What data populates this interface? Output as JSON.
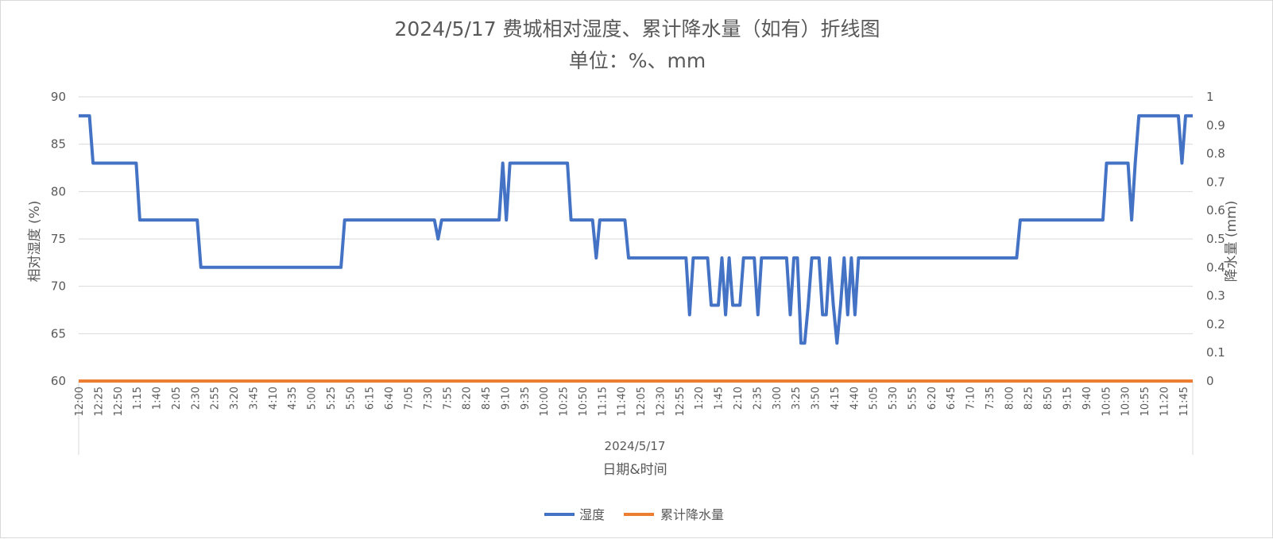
{
  "chart_data": {
    "type": "line",
    "title": "2024/5/17 费城相对湿度、累计降水量（如有）折线图",
    "subtitle": "单位：%、mm",
    "xlabel_group": "2024/5/17",
    "xlabel": "日期&时间",
    "ylabel": "相对湿度 (%)",
    "y2label": "降水量 (mm)",
    "ylim": [
      60,
      90
    ],
    "y_ticks": [
      60,
      65,
      70,
      75,
      80,
      85,
      90
    ],
    "y2lim": [
      0,
      1
    ],
    "y2_ticks": [
      "0",
      "0.1",
      "0.2",
      "0.3",
      "0.4",
      "0.5",
      "0.6",
      "0.7",
      "0.8",
      "0.9",
      "1"
    ],
    "grid": true,
    "legend_position": "bottom",
    "x_labels": [
      "12:00",
      "12:25",
      "12:50",
      "1:15",
      "1:40",
      "2:05",
      "2:30",
      "2:55",
      "3:20",
      "3:45",
      "4:10",
      "4:35",
      "5:00",
      "5:25",
      "5:50",
      "6:15",
      "6:40",
      "7:05",
      "7:30",
      "7:55",
      "8:20",
      "8:45",
      "9:10",
      "9:35",
      "10:00",
      "10:25",
      "10:50",
      "11:15",
      "11:40",
      "12:05",
      "12:30",
      "12:55",
      "1:20",
      "1:45",
      "2:10",
      "2:35",
      "3:00",
      "3:25",
      "3:50",
      "4:15",
      "4:40",
      "5:05",
      "5:30",
      "5:55",
      "6:20",
      "6:45",
      "7:10",
      "7:35",
      "8:00",
      "8:25",
      "8:50",
      "9:15",
      "9:40",
      "10:05",
      "10:30",
      "10:55",
      "11:20",
      "11:45"
    ],
    "colors": {
      "humidity": "#4472C4",
      "precip": "#ED7D31",
      "grid": "#D9D9D9"
    },
    "series": [
      {
        "name": "湿度",
        "axis": "left",
        "values": [
          88,
          88,
          88,
          88,
          83,
          83,
          83,
          83,
          83,
          83,
          83,
          83,
          83,
          83,
          83,
          83,
          83,
          77,
          77,
          77,
          77,
          77,
          77,
          77,
          77,
          77,
          77,
          77,
          77,
          77,
          77,
          77,
          77,
          77,
          72,
          72,
          72,
          72,
          72,
          72,
          72,
          72,
          72,
          72,
          72,
          72,
          72,
          72,
          72,
          72,
          72,
          72,
          72,
          72,
          72,
          72,
          72,
          72,
          72,
          72,
          72,
          72,
          72,
          72,
          72,
          72,
          72,
          72,
          72,
          72,
          72,
          72,
          72,
          72,
          77,
          77,
          77,
          77,
          77,
          77,
          77,
          77,
          77,
          77,
          77,
          77,
          77,
          77,
          77,
          77,
          77,
          77,
          77,
          77,
          77,
          77,
          77,
          77,
          77,
          77,
          75,
          77,
          77,
          77,
          77,
          77,
          77,
          77,
          77,
          77,
          77,
          77,
          77,
          77,
          77,
          77,
          77,
          77,
          83,
          77,
          83,
          83,
          83,
          83,
          83,
          83,
          83,
          83,
          83,
          83,
          83,
          83,
          83,
          83,
          83,
          83,
          83,
          77,
          77,
          77,
          77,
          77,
          77,
          77,
          73,
          77,
          77,
          77,
          77,
          77,
          77,
          77,
          77,
          73,
          73,
          73,
          73,
          73,
          73,
          73,
          73,
          73,
          73,
          73,
          73,
          73,
          73,
          73,
          73,
          73,
          67,
          73,
          73,
          73,
          73,
          73,
          68,
          68,
          68,
          73,
          67,
          73,
          68,
          68,
          68,
          73,
          73,
          73,
          73,
          67,
          73,
          73,
          73,
          73,
          73,
          73,
          73,
          73,
          67,
          73,
          73,
          64,
          64,
          68,
          73,
          73,
          73,
          67,
          67,
          73,
          68,
          64,
          68,
          73,
          67,
          73,
          67,
          73,
          73,
          73,
          73,
          73,
          73,
          73,
          73,
          73,
          73,
          73,
          73,
          73,
          73,
          73,
          73,
          73,
          73,
          73,
          73,
          73,
          73,
          73,
          73,
          73,
          73,
          73,
          73,
          73,
          73,
          73,
          73,
          73,
          73,
          73,
          73,
          73,
          73,
          73,
          73,
          73,
          73,
          73,
          73,
          73,
          77,
          77,
          77,
          77,
          77,
          77,
          77,
          77,
          77,
          77,
          77,
          77,
          77,
          77,
          77,
          77,
          77,
          77,
          77,
          77,
          77,
          77,
          77,
          77,
          83,
          83,
          83,
          83,
          83,
          83,
          83,
          77,
          83,
          88,
          88,
          88,
          88,
          88,
          88,
          88,
          88,
          88,
          88,
          88,
          88,
          83,
          88,
          88,
          88
        ]
      },
      {
        "name": "累计降水量",
        "axis": "right",
        "values": [
          0,
          0
        ]
      }
    ]
  }
}
